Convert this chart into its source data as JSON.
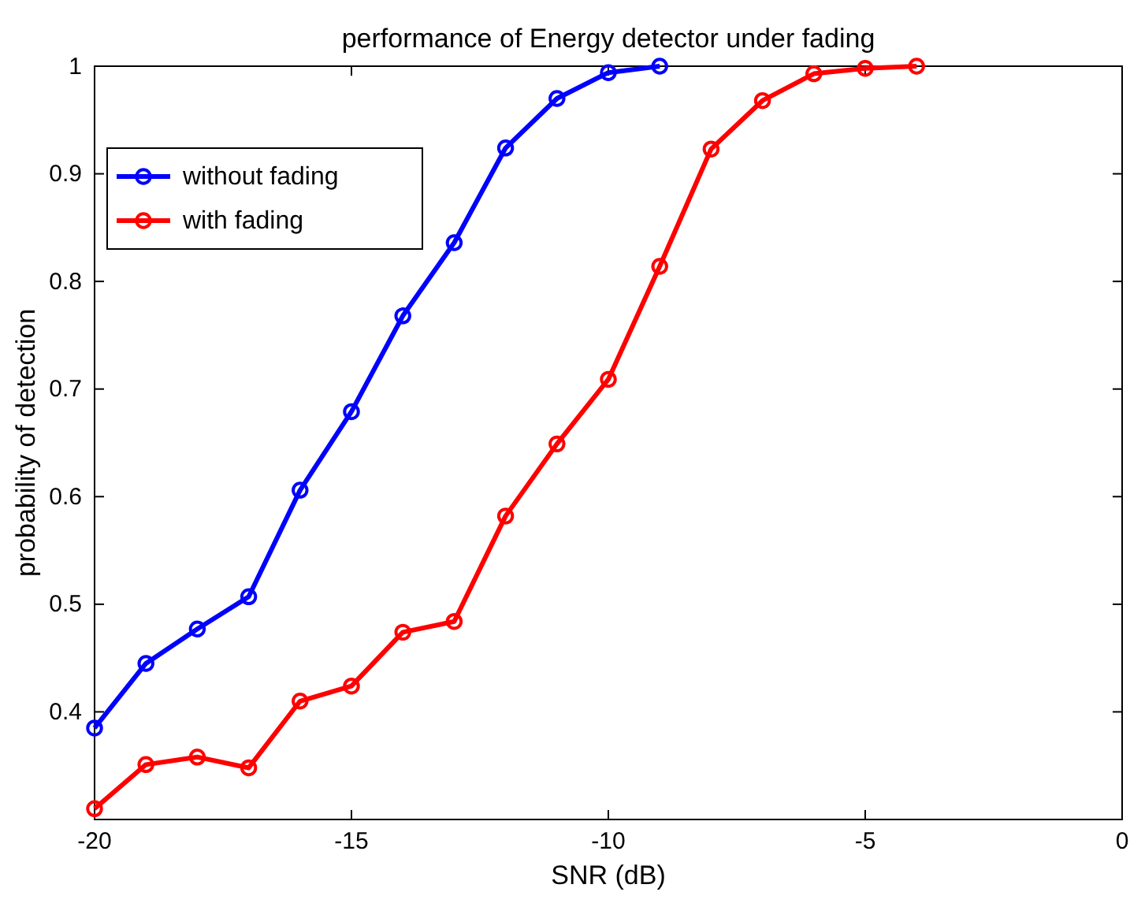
{
  "chart_data": {
    "type": "line",
    "title": "performance of Energy detector under fading",
    "xlabel": "SNR (dB)",
    "ylabel": "probability of detection",
    "xlim": [
      -20,
      0
    ],
    "xticks": [
      -20,
      -15,
      -10,
      -5,
      0
    ],
    "ylim": [
      0.3,
      1
    ],
    "yticks": [
      0.4,
      0.5,
      0.6,
      0.7,
      0.8,
      0.9,
      1
    ],
    "legend": "top left",
    "marker": "circle",
    "grid": false,
    "series": [
      {
        "name": "without fading",
        "color": "#0000ff",
        "x": [
          -20,
          -19,
          -18,
          -17,
          -16,
          -15,
          -14,
          -13,
          -12,
          -11,
          -10,
          -9
        ],
        "values": [
          0.385,
          0.445,
          0.477,
          0.507,
          0.606,
          0.679,
          0.768,
          0.836,
          0.924,
          0.97,
          0.994,
          1.0
        ]
      },
      {
        "name": "with fading",
        "color": "#ff0000",
        "x": [
          -20,
          -19,
          -18,
          -17,
          -16,
          -15,
          -14,
          -13,
          -12,
          -11,
          -10,
          -9,
          -8,
          -7,
          -6,
          -5,
          -4
        ],
        "values": [
          0.31,
          0.351,
          0.358,
          0.348,
          0.41,
          0.424,
          0.474,
          0.484,
          0.582,
          0.649,
          0.709,
          0.814,
          0.923,
          0.968,
          0.993,
          0.998,
          1.0
        ]
      }
    ]
  }
}
